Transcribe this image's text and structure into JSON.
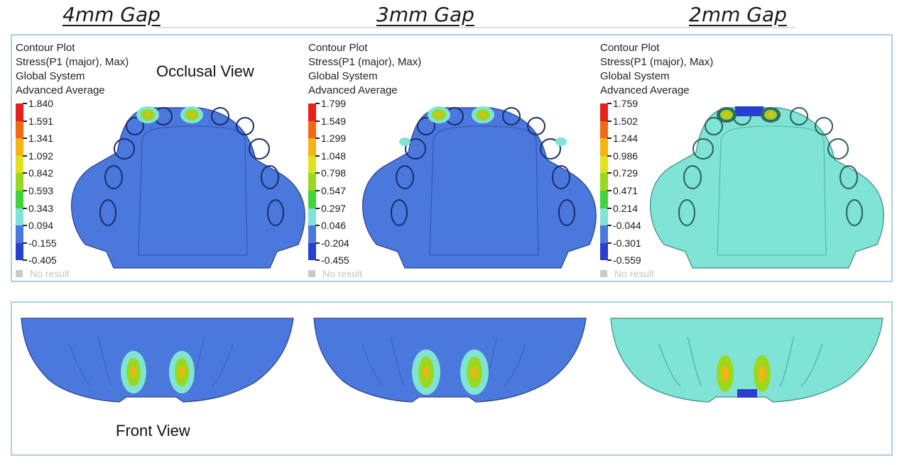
{
  "columns": [
    {
      "title": "4mm Gap",
      "legend": {
        "lines": [
          "Contour Plot",
          "Stress(P1 (major), Max)",
          "Global System",
          "Advanced Average"
        ],
        "values": [
          "1.840",
          "1.591",
          "1.341",
          "1.092",
          "0.842",
          "0.593",
          "0.343",
          "0.094",
          "-0.155",
          "-0.405"
        ],
        "no_result": "No result"
      },
      "base_color": "#4a78dd"
    },
    {
      "title": "3mm Gap",
      "legend": {
        "lines": [
          "Contour Plot",
          "Stress(P1 (major), Max)",
          "Global System",
          "Advanced Average"
        ],
        "values": [
          "1.799",
          "1.549",
          "1.299",
          "1.048",
          "0.798",
          "0.547",
          "0.297",
          "0.046",
          "-0.204",
          "-0.455"
        ],
        "no_result": "No result"
      },
      "base_color": "#4a78dd"
    },
    {
      "title": "2mm Gap",
      "legend": {
        "lines": [
          "Contour Plot",
          "Stress(P1 (major), Max)",
          "Global System",
          "Advanced Average"
        ],
        "values": [
          "1.759",
          "1.502",
          "1.244",
          "0.986",
          "0.729",
          "0.471",
          "0.214",
          "-0.044",
          "-0.301",
          "-0.559"
        ],
        "no_result": "No result"
      },
      "base_color": "#7fe3d6"
    }
  ],
  "labels": {
    "occlusal": "Occlusal View",
    "front": "Front View"
  },
  "contour_colors": [
    "#e8201c",
    "#f06a14",
    "#f5b414",
    "#e2e21c",
    "#9ad81e",
    "#3ed43a",
    "#7fe3d6",
    "#4a78dd",
    "#2a3fcf",
    "#1e22b8"
  ],
  "no_result_color": "#c9c9c9"
}
